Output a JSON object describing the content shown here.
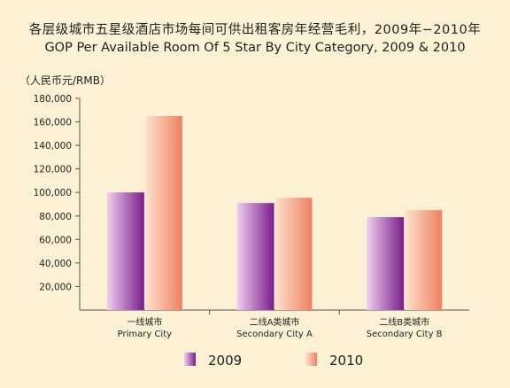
{
  "chart_data": {
    "type": "bar",
    "title": "各层级城市五星级酒店市场每间可供出租客房年经营毛利，2009年−2010年",
    "subtitle": "GOP Per Available Room Of 5 Star By City Category, 2009 & 2010",
    "ylabel": "（人民币元/RMB）",
    "xlabel": "",
    "ylim": [
      0,
      180000
    ],
    "yticks": [
      20000,
      40000,
      60000,
      80000,
      100000,
      120000,
      140000,
      160000,
      180000
    ],
    "ytick_labels": [
      "20,000",
      "40,000",
      "60,000",
      "80,000",
      "100,000",
      "120,000",
      "140,000",
      "160,000",
      "180,000"
    ],
    "categories": [
      {
        "cn": "一线城市",
        "en": "Primary City"
      },
      {
        "cn": "二线A类城市",
        "en": "Secondary City A"
      },
      {
        "cn": "二线B类城市",
        "en": "Secondary City B"
      }
    ],
    "series": [
      {
        "name": "2009",
        "values": [
          100000,
          91000,
          79000
        ]
      },
      {
        "name": "2010",
        "values": [
          165000,
          95500,
          85000
        ]
      }
    ],
    "legend_position": "bottom",
    "grid": false,
    "colors": {
      "s2009_light": "#efd0ee",
      "s2009_dark": "#7a1b8c",
      "s2010_light": "#fde3d0",
      "s2010_dark": "#f08060",
      "axis": "#555555"
    }
  }
}
